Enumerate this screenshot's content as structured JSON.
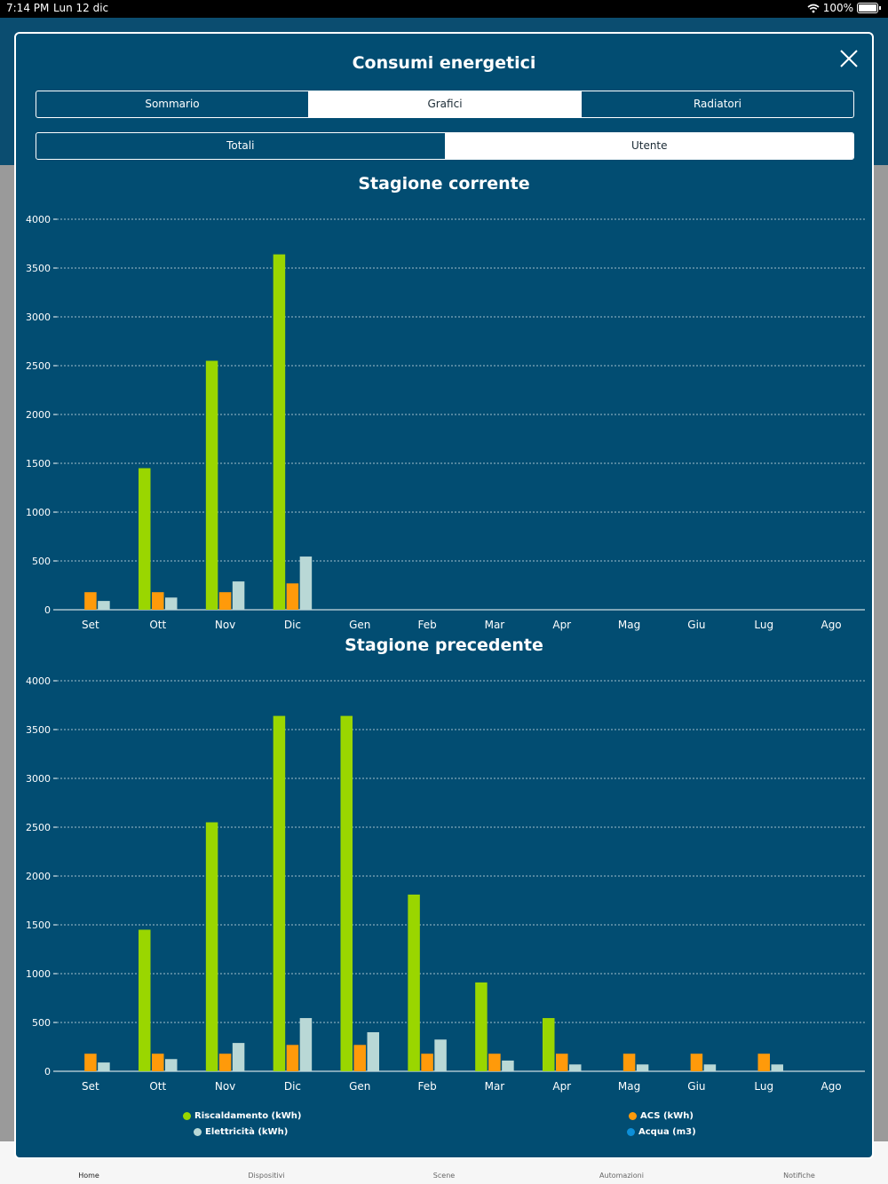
{
  "status_bar": {
    "time": "7:14 PM",
    "date": "Lun 12 dic",
    "battery": "100%"
  },
  "tab_bar": {
    "items": [
      {
        "label": "Home",
        "active": true
      },
      {
        "label": "Dispositivi",
        "active": false
      },
      {
        "label": "Scene",
        "active": false
      },
      {
        "label": "Automazioni",
        "active": false
      },
      {
        "label": "Notifiche",
        "active": false
      }
    ]
  },
  "modal": {
    "title": "Consumi energetici",
    "main_tabs": [
      {
        "label": "Sommario",
        "selected": false
      },
      {
        "label": "Grafici",
        "selected": true
      },
      {
        "label": "Radiatori",
        "selected": false
      }
    ],
    "sub_tabs": [
      {
        "label": "Totali",
        "selected": false
      },
      {
        "label": "Utente",
        "selected": true
      }
    ]
  },
  "colors": {
    "riscaldamento": "#9ad600",
    "acs": "#ff9a0a",
    "elettricita": "#b9d8d6",
    "acqua": "#0d8fd8",
    "background": "#024d72"
  },
  "legend": [
    {
      "label": "Riscaldamento (kWh)",
      "color": "#9ad600"
    },
    {
      "label": "ACS (kWh)",
      "color": "#ff9a0a"
    },
    {
      "label": "Elettricità (kWh)",
      "color": "#b9d8d6"
    },
    {
      "label": "Acqua (m3)",
      "color": "#0d8fd8"
    }
  ],
  "chart_data": [
    {
      "type": "bar",
      "title": "Stagione corrente",
      "categories": [
        "Set",
        "Ott",
        "Nov",
        "Dic",
        "Gen",
        "Feb",
        "Mar",
        "Apr",
        "Mag",
        "Giu",
        "Lug",
        "Ago"
      ],
      "ylim": [
        0,
        4000
      ],
      "yticks": [
        0,
        500,
        1000,
        1500,
        2000,
        2500,
        3000,
        3500,
        4000
      ],
      "grid": true,
      "series": [
        {
          "name": "Riscaldamento (kWh)",
          "color": "#9ad600",
          "values": [
            0,
            1450,
            2550,
            3640,
            0,
            0,
            0,
            0,
            0,
            0,
            0,
            0
          ]
        },
        {
          "name": "ACS (kWh)",
          "color": "#ff9a0a",
          "values": [
            180,
            180,
            180,
            270,
            0,
            0,
            0,
            0,
            0,
            0,
            0,
            0
          ]
        },
        {
          "name": "Elettricità (kWh)",
          "color": "#b9d8d6",
          "values": [
            90,
            125,
            290,
            545,
            0,
            0,
            0,
            0,
            0,
            0,
            0,
            0
          ]
        }
      ]
    },
    {
      "type": "bar",
      "title": "Stagione precedente",
      "categories": [
        "Set",
        "Ott",
        "Nov",
        "Dic",
        "Gen",
        "Feb",
        "Mar",
        "Apr",
        "Mag",
        "Giu",
        "Lug",
        "Ago"
      ],
      "ylim": [
        0,
        4000
      ],
      "yticks": [
        0,
        500,
        1000,
        1500,
        2000,
        2500,
        3000,
        3500,
        4000
      ],
      "grid": true,
      "series": [
        {
          "name": "Riscaldamento (kWh)",
          "color": "#9ad600",
          "values": [
            0,
            1450,
            2550,
            3640,
            3640,
            1810,
            910,
            545,
            0,
            0,
            0,
            0
          ]
        },
        {
          "name": "ACS (kWh)",
          "color": "#ff9a0a",
          "values": [
            180,
            180,
            180,
            270,
            270,
            180,
            180,
            180,
            180,
            180,
            180,
            0
          ]
        },
        {
          "name": "Elettricità (kWh)",
          "color": "#b9d8d6",
          "values": [
            90,
            125,
            290,
            545,
            400,
            325,
            110,
            70,
            70,
            70,
            70,
            0
          ]
        }
      ]
    }
  ]
}
